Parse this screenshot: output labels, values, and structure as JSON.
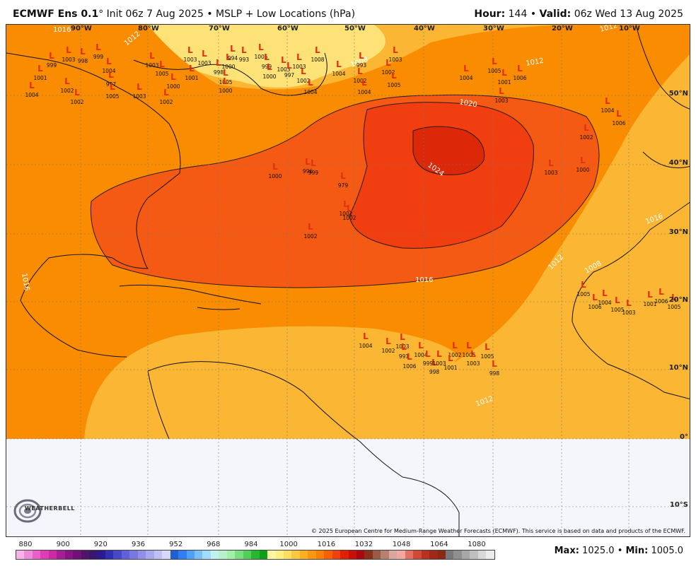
{
  "header": {
    "model": "ECMWF Ens 0.1",
    "degree": "°",
    "init": "Init 06z 7 Aug 2025",
    "bullet": "•",
    "field": "MSLP + Low Locations (hPa)",
    "hour_label": "Hour:",
    "hour_value": "144",
    "valid_label": "Valid:",
    "valid_value": "06z Wed 13 Aug 2025"
  },
  "colors": {
    "ocean_1012": "#fbb634",
    "ocean_1016": "#f98c00",
    "ocean_1020": "#f55a14",
    "ocean_1024": "#dc2808",
    "ocean_1008": "#fde278",
    "land_fill": "#f4f6fb",
    "low_marker": "#e03010",
    "contour": "#2a1a10"
  },
  "lon_ticks": [
    "90°W",
    "80°W",
    "70°W",
    "60°W",
    "50°W",
    "40°W",
    "30°W",
    "20°W",
    "10°W"
  ],
  "lat_ticks": [
    "50°N",
    "40°N",
    "30°N",
    "20°N",
    "10°N",
    "0°",
    "10°S"
  ],
  "contour_labels": [
    "1016",
    "1012",
    "1008",
    "1012",
    "1020",
    "1024",
    "1016",
    "1012",
    "1012",
    "1008",
    "1016",
    "1016",
    "1012"
  ],
  "low_marker_symbol": "L",
  "low_values": [
    "999",
    "1003",
    "998",
    "999",
    "1001",
    "1002",
    "1004",
    "1002",
    "1004",
    "997",
    "1005",
    "1003",
    "1003",
    "1005",
    "1002",
    "1000",
    "1003",
    "1001",
    "1003",
    "998",
    "1005",
    "1000",
    "994",
    "1000",
    "993",
    "1005",
    "999",
    "1000",
    "1003",
    "997",
    "1002",
    "1004",
    "1003",
    "1008",
    "1004",
    "993",
    "1002",
    "1004",
    "1002",
    "1005",
    "1003",
    "1004",
    "1005",
    "1001",
    "1006",
    "1003",
    "1004",
    "1006",
    "1002",
    "1003",
    "1000",
    "1000",
    "996",
    "999",
    "979",
    "1002",
    "1002",
    "1002",
    "1004",
    "1002",
    "1003",
    "991",
    "1004",
    "999",
    "998",
    "1006",
    "1003",
    "1002",
    "1001",
    "1005",
    "1003",
    "1005",
    "998",
    "1005",
    "1006",
    "1004",
    "1005",
    "1003",
    "1001",
    "1006",
    "1005"
  ],
  "copyright": "© 2025 European Centre for Medium-Range Weather Forecasts (ECMWF). This service is based on data and products of the ECMWF.",
  "logo_text": "WEATHERBELL",
  "colorbar": {
    "labels": [
      "880",
      "900",
      "920",
      "936",
      "952",
      "968",
      "984",
      "1000",
      "1016",
      "1032",
      "1048",
      "1064",
      "1080"
    ],
    "colors": [
      "#f7b3e8",
      "#f08ad8",
      "#e860c8",
      "#e03cb8",
      "#c82aa8",
      "#a81c98",
      "#881488",
      "#701078",
      "#501468",
      "#3a1670",
      "#2a1a90",
      "#3030b0",
      "#4848c8",
      "#6060d8",
      "#7878e0",
      "#9090e8",
      "#a8a8f0",
      "#c0c0f4",
      "#d8d8f8",
      "#1f5fd0",
      "#2f7ff0",
      "#50a0f8",
      "#78c0fa",
      "#a0dcfc",
      "#c0f0f0",
      "#b8f0d0",
      "#a0f0a8",
      "#78e080",
      "#50d058",
      "#28b830",
      "#10a018",
      "#f8f8a0",
      "#fef080",
      "#fde060",
      "#fbc840",
      "#fbb020",
      "#f99810",
      "#f88000",
      "#f66000",
      "#f04010",
      "#e02000",
      "#c81008",
      "#a80810",
      "#8a3018",
      "#9a5a48",
      "#b88070",
      "#d8a8a0",
      "#f0a8a0",
      "#e07060",
      "#d04838",
      "#b83020",
      "#a02818",
      "#8a2818",
      "#787878",
      "#909090",
      "#a8a8a8",
      "#c0c0c0",
      "#d8d8d8",
      "#ececec"
    ]
  },
  "stats": {
    "max_label": "Max:",
    "max_value": "1025.0",
    "bullet": "•",
    "min_label": "Min:",
    "min_value": "1005.0"
  }
}
